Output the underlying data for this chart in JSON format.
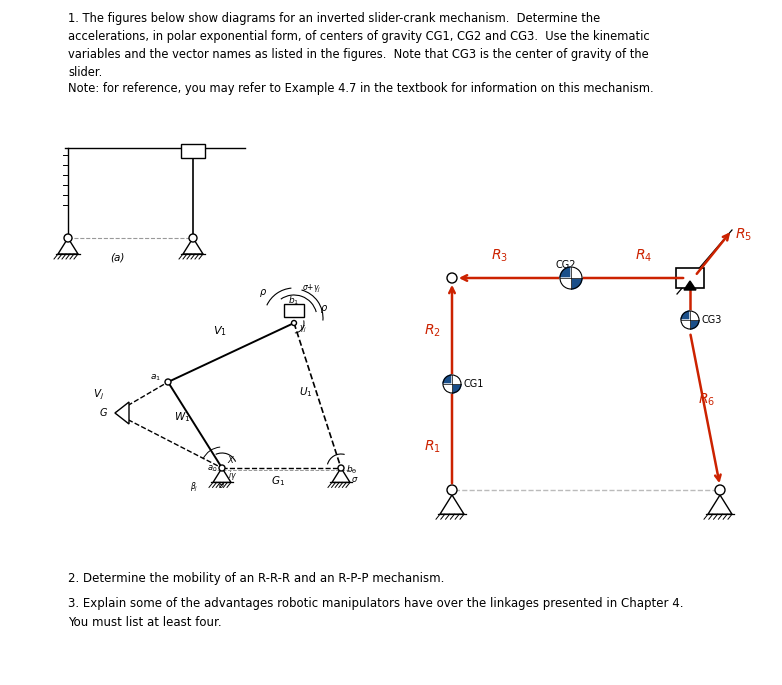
{
  "background_color": "#ffffff",
  "text_color": "#000000",
  "red_color": "#cc2200",
  "blue_color": "#1a4f8a",
  "gray_color": "#999999",
  "q1_text": "1. The figures below show diagrams for an inverted slider-crank mechanism.  Determine the\naccelerations, in polar exponential form, of centers of gravity CG1, CG2 and CG3.  Use the kinematic\nvariables and the vector names as listed in the figures.  Note that CG3 is the center of gravity of the\nslider.",
  "note_text": "Note: for reference, you may refer to Example 4.7 in the textbook for information on this mechanism.",
  "q2_text": "2. Determine the mobility of an R-R-R and an R-P-P mechanism.",
  "q3_text": "3. Explain some of the advantages robotic manipulators have over the linkages presented in Chapter 4.\nYou must list at least four.",
  "fig_width": 7.82,
  "fig_height": 6.85,
  "dpi": 100
}
